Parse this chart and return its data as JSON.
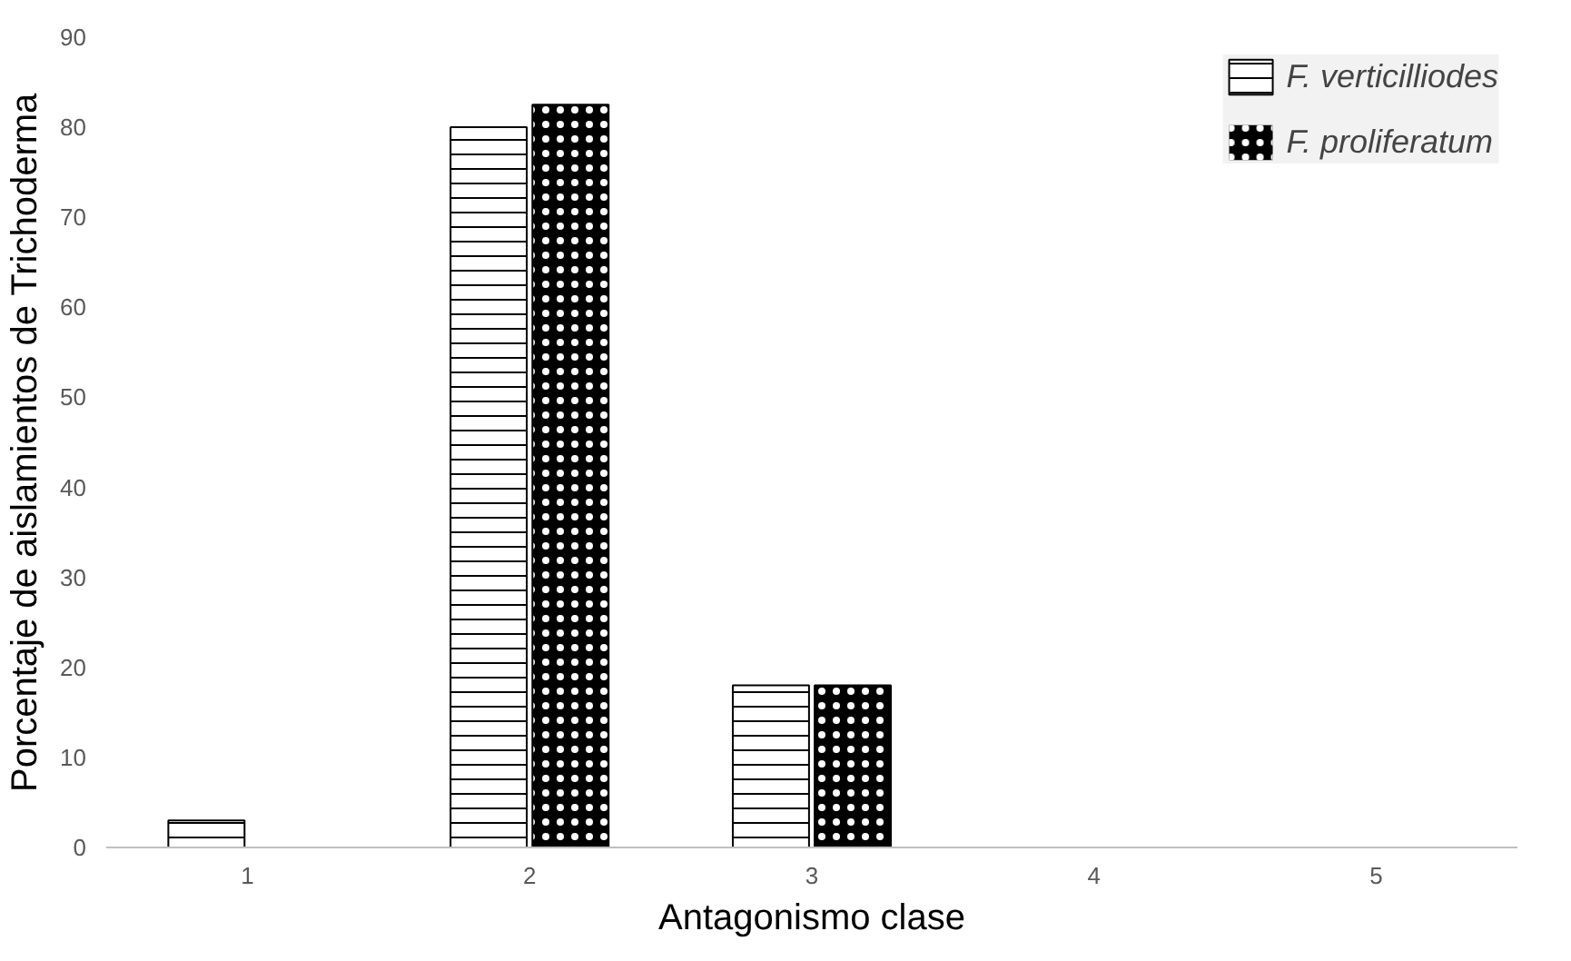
{
  "chart_data": {
    "type": "bar",
    "xlabel": "Antagonismo clase",
    "ylabel": "Porcentaje de aislamientos de Trichoderma",
    "categories": [
      "1",
      "2",
      "3",
      "4",
      "5"
    ],
    "series": [
      {
        "name": "F. verticilliodes",
        "color": "#ffffff",
        "values": [
          3,
          80,
          18,
          0,
          0
        ]
      },
      {
        "name": "F. proliferatum",
        "color": "#000000",
        "values": [
          0,
          82.5,
          18,
          0,
          0
        ]
      }
    ],
    "ylim": [
      0,
      90
    ],
    "yticks": [
      0,
      10,
      20,
      30,
      40,
      50,
      60,
      70,
      80,
      90
    ],
    "grid": false,
    "legend": "top right"
  }
}
